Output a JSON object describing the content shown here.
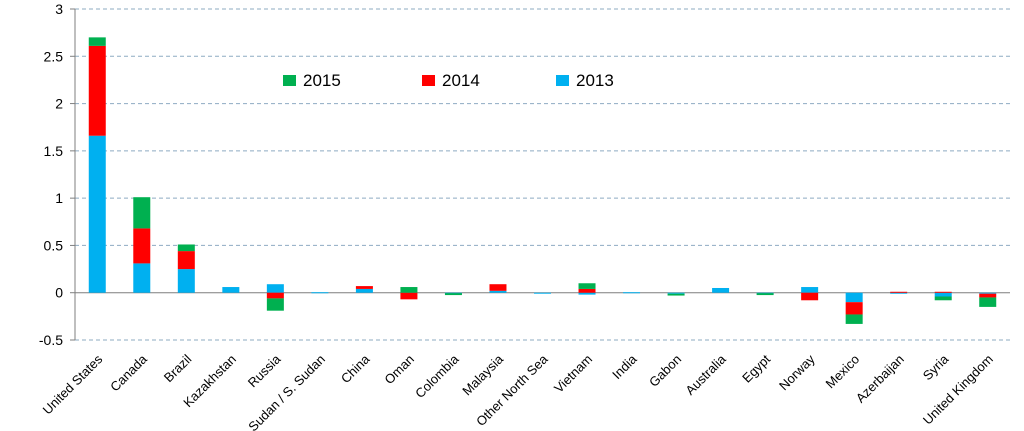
{
  "chart_data": {
    "type": "bar",
    "stacked": true,
    "title": "",
    "xlabel": "",
    "ylabel": "",
    "ylim": [
      -0.5,
      3
    ],
    "y_ticks": [
      "3",
      "2.5",
      "2",
      "1.5",
      "1",
      "0.5",
      "0",
      "-0.5"
    ],
    "y_tick_values": [
      3,
      2.5,
      2,
      1.5,
      1,
      0.5,
      0,
      -0.5
    ],
    "grid": true,
    "legend_position": "top-center",
    "categories": [
      "United States",
      "Canada",
      "Brazil",
      "Kazakhstan",
      "Russia",
      "Sudan / S. Sudan",
      "China",
      "Oman",
      "Colombia",
      "Malaysia",
      "Other North Sea",
      "Vietnam",
      "India",
      "Gabon",
      "Australia",
      "Egypt",
      "Norway",
      "Mexico",
      "Azerbaijan",
      "Syria",
      "United Kingdom"
    ],
    "series": [
      {
        "name": "2013",
        "color": "#00b0f0",
        "values": [
          1.66,
          0.31,
          0.25,
          0.06,
          0.09,
          0.005,
          0.04,
          0.0,
          -0.005,
          0.02,
          -0.005,
          -0.02,
          0.005,
          -0.01,
          0.05,
          -0.005,
          0.06,
          -0.1,
          -0.01,
          -0.04,
          -0.01
        ]
      },
      {
        "name": "2014",
        "color": "#ff0000",
        "values": [
          0.95,
          0.37,
          0.19,
          0.0,
          -0.06,
          0.0,
          0.03,
          -0.07,
          0.0,
          0.07,
          0.0,
          0.04,
          0.0,
          0.0,
          0.0,
          0.0,
          -0.08,
          -0.13,
          0.01,
          0.01,
          -0.04
        ]
      },
      {
        "name": "2015",
        "color": "#00b050",
        "values": [
          0.09,
          0.33,
          0.07,
          0.0,
          -0.13,
          0.0,
          0.0,
          0.06,
          -0.02,
          0.0,
          0.0,
          0.06,
          0.0,
          -0.02,
          0.0,
          -0.02,
          0.0,
          -0.1,
          0.0,
          -0.04,
          -0.1
        ]
      }
    ],
    "legend": [
      {
        "name": "2015",
        "color": "#00b050"
      },
      {
        "name": "2014",
        "color": "#ff0000"
      },
      {
        "name": "2013",
        "color": "#00b0f0"
      }
    ]
  }
}
